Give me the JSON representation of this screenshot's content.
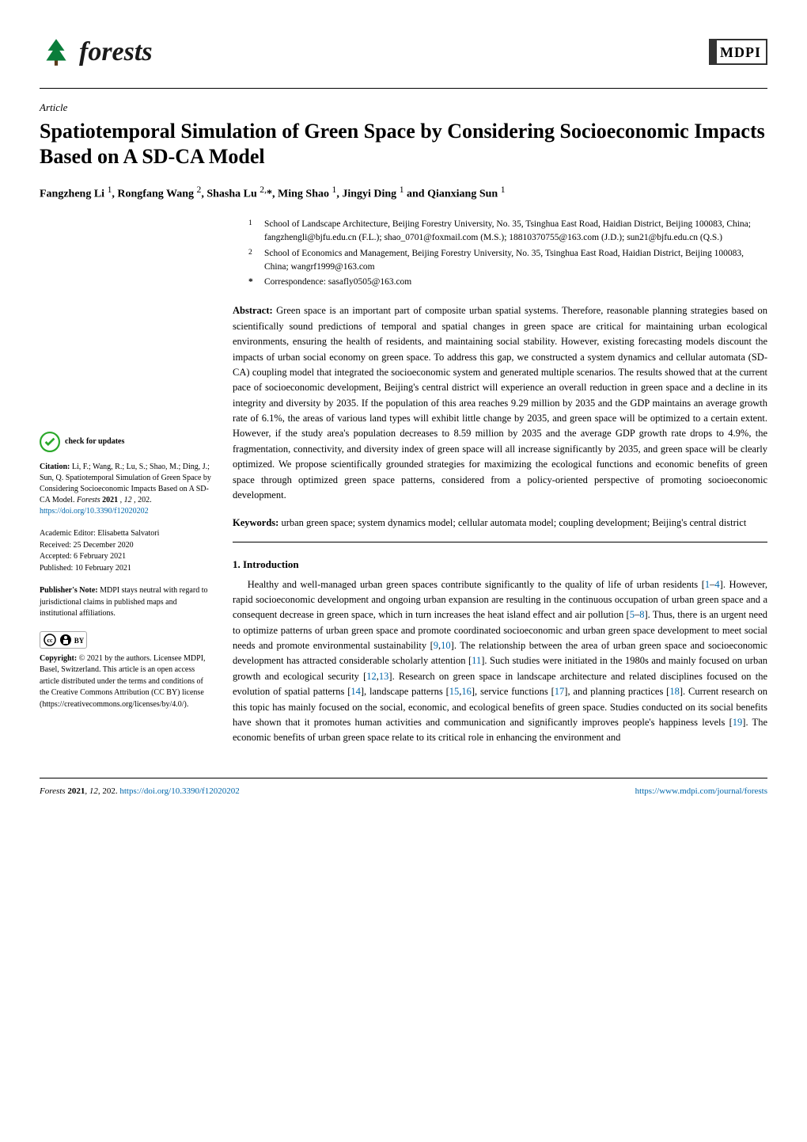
{
  "journal": {
    "name": "forests",
    "publisher": "MDPI"
  },
  "article": {
    "type": "Article",
    "title": "Spatiotemporal Simulation of Green Space by Considering Socioeconomic Impacts Based on A SD-CA Model",
    "authors_html": "Fangzheng Li <sup>1</sup>, Rongfang Wang <sup>2</sup>, Shasha Lu <sup>2,</sup>*, Ming Shao <sup>1</sup>, Jingyi Ding <sup>1</sup> and Qianxiang Sun <sup>1</sup>"
  },
  "affiliations": {
    "a1_num": "1",
    "a1_text": "School of Landscape Architecture, Beijing Forestry University, No. 35, Tsinghua East Road, Haidian District, Beijing 100083, China; fangzhengli@bjfu.edu.cn (F.L.); shao_0701@foxmail.com (M.S.); 18810370755@163.com (J.D.); sun21@bjfu.edu.cn (Q.S.)",
    "a2_num": "2",
    "a2_text": "School of Economics and Management, Beijing Forestry University, No. 35, Tsinghua East Road, Haidian District, Beijing 100083, China; wangrf1999@163.com",
    "corr_sym": "*",
    "corr_text": "Correspondence: sasafly0505@163.com"
  },
  "abstract": {
    "label": "Abstract:",
    "text": "Green space is an important part of composite urban spatial systems. Therefore, reasonable planning strategies based on scientifically sound predictions of temporal and spatial changes in green space are critical for maintaining urban ecological environments, ensuring the health of residents, and maintaining social stability. However, existing forecasting models discount the impacts of urban social economy on green space. To address this gap, we constructed a system dynamics and cellular automata (SD-CA) coupling model that integrated the socioeconomic system and generated multiple scenarios. The results showed that at the current pace of socioeconomic development, Beijing's central district will experience an overall reduction in green space and a decline in its integrity and diversity by 2035. If the population of this area reaches 9.29 million by 2035 and the GDP maintains an average growth rate of 6.1%, the areas of various land types will exhibit little change by 2035, and green space will be optimized to a certain extent. However, if the study area's population decreases to 8.59 million by 2035 and the average GDP growth rate drops to 4.9%, the fragmentation, connectivity, and diversity index of green space will all increase significantly by 2035, and green space will be clearly optimized. We propose scientifically grounded strategies for maximizing the ecological functions and economic benefits of green space through optimized green space patterns, considered from a policy-oriented perspective of promoting socioeconomic development."
  },
  "keywords": {
    "label": "Keywords:",
    "text": "urban green space; system dynamics model; cellular automata model; coupling development; Beijing's central district"
  },
  "section1": {
    "heading": "1. Introduction",
    "p1_a": "Healthy and well-managed urban green spaces contribute significantly to the quality of life of urban residents [",
    "p1_ref1": "1",
    "p1_dash1": "–",
    "p1_ref2": "4",
    "p1_b": "]. However, rapid socioeconomic development and ongoing urban expansion are resulting in the continuous occupation of urban green space and a consequent decrease in green space, which in turn increases the heat island effect and air pollution [",
    "p1_ref3": "5",
    "p1_dash2": "–",
    "p1_ref4": "8",
    "p1_c": "]. Thus, there is an urgent need to optimize patterns of urban green space and promote coordinated socioeconomic and urban green space development to meet social needs and promote environmental sustainability [",
    "p1_ref5": "9",
    "p1_comma1": ",",
    "p1_ref6": "10",
    "p1_d": "]. The relationship between the area of urban green space and socioeconomic development has attracted considerable scholarly attention [",
    "p1_ref7": "11",
    "p1_e": "]. Such studies were initiated in the 1980s and mainly focused on urban growth and ecological security [",
    "p1_ref8": "12",
    "p1_comma2": ",",
    "p1_ref9": "13",
    "p1_f": "]. Research on green space in landscape architecture and related disciplines focused on the evolution of spatial patterns [",
    "p1_ref10": "14",
    "p1_g": "], landscape patterns [",
    "p1_ref11": "15",
    "p1_comma3": ",",
    "p1_ref12": "16",
    "p1_h": "], service functions [",
    "p1_ref13": "17",
    "p1_i": "], and planning practices [",
    "p1_ref14": "18",
    "p1_j": "]. Current research on this topic has mainly focused on the social, economic, and ecological benefits of green space. Studies conducted on its social benefits have shown that it promotes human activities and communication and significantly improves people's happiness levels [",
    "p1_ref15": "19",
    "p1_k": "]. The economic benefits of urban green space relate to its critical role in enhancing the environment and"
  },
  "sidebar": {
    "check_updates": "check for updates",
    "citation_label": "Citation:",
    "citation_text": "Li, F.; Wang, R.; Lu, S.; Shao, M.; Ding, J.; Sun, Q. Spatiotemporal Simulation of Green Space by Considering Socioeconomic Impacts Based on A SD-CA Model. ",
    "citation_journal": "Forests",
    "citation_year": " 2021",
    "citation_vol": ", 12",
    "citation_pages": ", 202. ",
    "citation_doi": "https://doi.org/10.3390/f12020202",
    "editor_label": "Academic Editor: ",
    "editor_name": "Elisabetta Salvatori",
    "received": "Received: 25 December 2020",
    "accepted": "Accepted: 6 February 2021",
    "published": "Published: 10 February 2021",
    "pubnote_label": "Publisher's Note:",
    "pubnote_text": " MDPI stays neutral with regard to jurisdictional claims in published maps and institutional affiliations.",
    "copyright_label": "Copyright:",
    "copyright_text": " © 2021 by the authors. Licensee MDPI, Basel, Switzerland. This article is an open access article distributed under the terms and conditions of the Creative Commons Attribution (CC BY) license (https://creativecommons.org/licenses/by/4.0/)."
  },
  "footer": {
    "left_a": "Forests ",
    "left_b": "2021",
    "left_c": ", 12",
    "left_d": ", 202. ",
    "left_doi": "https://doi.org/10.3390/f12020202",
    "right": "https://www.mdpi.com/journal/forests"
  },
  "colors": {
    "link": "#0066aa",
    "tree": "#0a7d3a",
    "check": "#2aa82a"
  }
}
